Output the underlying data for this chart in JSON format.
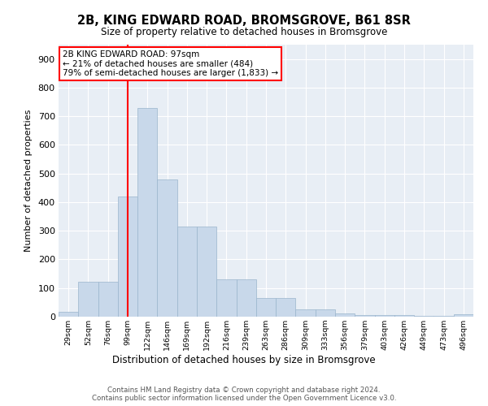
{
  "title": "2B, KING EDWARD ROAD, BROMSGROVE, B61 8SR",
  "subtitle": "Size of property relative to detached houses in Bromsgrove",
  "xlabel": "Distribution of detached houses by size in Bromsgrove",
  "ylabel": "Number of detached properties",
  "bar_labels": [
    "29sqm",
    "52sqm",
    "76sqm",
    "99sqm",
    "122sqm",
    "146sqm",
    "169sqm",
    "192sqm",
    "216sqm",
    "239sqm",
    "263sqm",
    "286sqm",
    "309sqm",
    "333sqm",
    "356sqm",
    "379sqm",
    "403sqm",
    "426sqm",
    "449sqm",
    "473sqm",
    "496sqm"
  ],
  "bar_values": [
    18,
    122,
    122,
    420,
    730,
    480,
    315,
    315,
    130,
    130,
    65,
    65,
    25,
    25,
    12,
    7,
    5,
    5,
    3,
    3,
    8
  ],
  "bar_color": "#c8d8ea",
  "bar_edge_color": "#9ab5cc",
  "vline_color": "red",
  "annotation_title": "2B KING EDWARD ROAD: 97sqm",
  "annotation_line1": "← 21% of detached houses are smaller (484)",
  "annotation_line2": "79% of semi-detached houses are larger (1,833) →",
  "ylim_max": 950,
  "yticks": [
    0,
    100,
    200,
    300,
    400,
    500,
    600,
    700,
    800,
    900
  ],
  "bg_color": "#e8eef5",
  "footer1": "Contains HM Land Registry data © Crown copyright and database right 2024.",
  "footer2": "Contains public sector information licensed under the Open Government Licence v3.0."
}
